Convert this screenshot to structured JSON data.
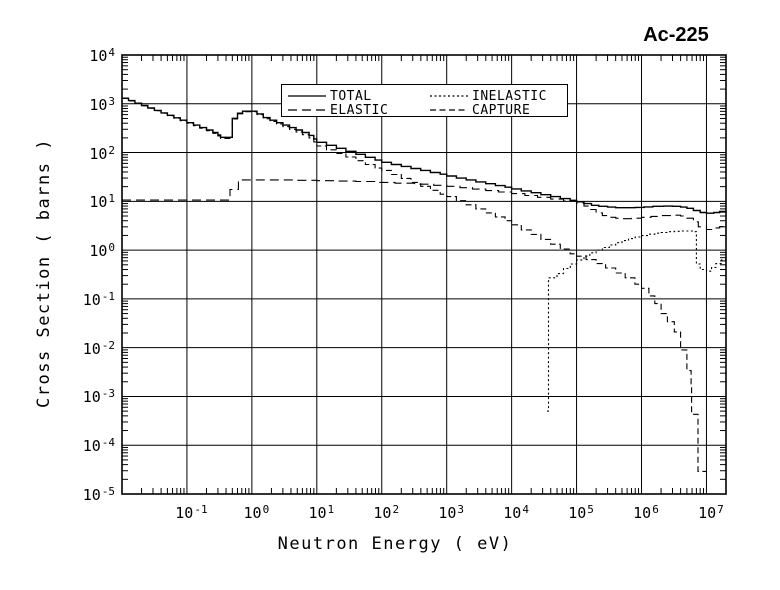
{
  "title": "Ac-225",
  "chart_data": {
    "type": "line",
    "title": "Ac-225",
    "xlabel": "Neutron Energy ( eV)",
    "ylabel": "Cross Section ( barns )",
    "x_scale": "log",
    "y_scale": "log",
    "xlim": [
      0.01,
      20000000
    ],
    "ylim": [
      1e-05,
      10000
    ],
    "x_tick_exponents": [
      -1,
      0,
      1,
      2,
      3,
      4,
      5,
      6,
      7
    ],
    "y_tick_exponents": [
      4,
      3,
      2,
      1,
      0,
      -1,
      -2,
      -3,
      -4,
      -5
    ],
    "grid": true,
    "line_color": "#000000",
    "legend": {
      "position": "top-center",
      "entries": [
        {
          "label": "TOTAL",
          "dash": ""
        },
        {
          "label": "ELASTIC",
          "dash": "9,5"
        },
        {
          "label": "INELASTIC",
          "dash": "2,2.5"
        },
        {
          "label": "CAPTURE",
          "dash": "6,3.5"
        }
      ]
    },
    "series": [
      {
        "name": "ELASTIC",
        "dash": "9,5",
        "width": 1.1,
        "color": "#000000",
        "step": true,
        "end": 20000000,
        "points": [
          [
            0.01,
            10.6
          ],
          [
            0.46,
            17.5
          ],
          [
            0.62,
            27.5
          ],
          [
            2,
            27.5
          ],
          [
            5,
            27
          ],
          [
            10,
            26.5
          ],
          [
            20,
            26
          ],
          [
            40,
            25.5
          ],
          [
            80,
            24.5
          ],
          [
            160,
            23.5
          ],
          [
            320,
            22.5
          ],
          [
            630,
            21.3
          ],
          [
            1000,
            20.3
          ],
          [
            1600,
            19
          ],
          [
            2500,
            17.8
          ],
          [
            4000,
            16.6
          ],
          [
            6300,
            15.5
          ],
          [
            10000,
            14.4
          ],
          [
            16000,
            13.2
          ],
          [
            25000,
            12.1
          ],
          [
            40000,
            11.1
          ],
          [
            63000,
            10.1
          ],
          [
            100000,
            9.2
          ],
          [
            130000,
            8.0
          ],
          [
            160000,
            6.8
          ],
          [
            200000,
            5.8
          ],
          [
            250000,
            5.1
          ],
          [
            320000,
            4.7
          ],
          [
            400000,
            4.5
          ],
          [
            500000,
            4.4
          ],
          [
            700000,
            4.5
          ],
          [
            1000000,
            4.7
          ],
          [
            1400000,
            4.9
          ],
          [
            2000000,
            5.1
          ],
          [
            3000000,
            5.2
          ],
          [
            4000000,
            5.0
          ],
          [
            5000000,
            4.5
          ],
          [
            6300000,
            3.8
          ],
          [
            7500000,
            3.0
          ],
          [
            10000000,
            2.65
          ],
          [
            13000000,
            2.85
          ],
          [
            16000000,
            3.05
          ],
          [
            20000000,
            3.25
          ]
        ]
      },
      {
        "name": "CAPTURE",
        "dash": "6,3.5",
        "width": 1.1,
        "color": "#000000",
        "step": true,
        "end": 10000000,
        "points": [
          [
            0.01,
            1290
          ],
          [
            0.0126,
            1150
          ],
          [
            0.0158,
            1020
          ],
          [
            0.02,
            910
          ],
          [
            0.025,
            810
          ],
          [
            0.0316,
            720
          ],
          [
            0.04,
            640
          ],
          [
            0.05,
            570
          ],
          [
            0.063,
            507
          ],
          [
            0.079,
            450
          ],
          [
            0.1,
            400
          ],
          [
            0.126,
            355
          ],
          [
            0.158,
            315
          ],
          [
            0.2,
            280
          ],
          [
            0.251,
            248
          ],
          [
            0.3,
            220
          ],
          [
            0.33,
            194
          ],
          [
            0.5,
            488
          ],
          [
            0.6,
            622
          ],
          [
            0.72,
            688
          ],
          [
            1.2,
            600
          ],
          [
            1.5,
            495
          ],
          [
            1.9,
            435
          ],
          [
            2.4,
            385
          ],
          [
            3,
            340
          ],
          [
            3.8,
            300
          ],
          [
            4.8,
            265
          ],
          [
            6,
            232
          ],
          [
            7.6,
            200
          ],
          [
            9,
            165
          ],
          [
            10,
            136
          ],
          [
            14.1,
            114
          ],
          [
            20,
            96
          ],
          [
            28,
            81
          ],
          [
            40,
            68
          ],
          [
            56,
            57
          ],
          [
            79,
            48
          ],
          [
            100,
            43
          ],
          [
            141,
            35.5
          ],
          [
            200,
            29.5
          ],
          [
            282,
            24.5
          ],
          [
            398,
            20.3
          ],
          [
            562,
            16.8
          ],
          [
            794,
            14
          ],
          [
            1000,
            12.5
          ],
          [
            1410,
            10.3
          ],
          [
            2000,
            8.5
          ],
          [
            2820,
            7.0
          ],
          [
            3980,
            5.8
          ],
          [
            5620,
            4.8
          ],
          [
            7940,
            4.0
          ],
          [
            10000,
            3.3
          ],
          [
            14100,
            2.6
          ],
          [
            20000,
            2.1
          ],
          [
            28200,
            1.66
          ],
          [
            39800,
            1.32
          ],
          [
            56200,
            1.05
          ],
          [
            79400,
            0.84
          ],
          [
            100000,
            0.75
          ],
          [
            140000,
            0.64
          ],
          [
            200000,
            0.53
          ],
          [
            280000,
            0.43
          ],
          [
            400000,
            0.34
          ],
          [
            560000,
            0.27
          ],
          [
            790000,
            0.2
          ],
          [
            1000000,
            0.165
          ],
          [
            1300000,
            0.115
          ],
          [
            1600000,
            0.08
          ],
          [
            2000000,
            0.05
          ],
          [
            2500000,
            0.034
          ],
          [
            3200000,
            0.021
          ],
          [
            4000000,
            0.009
          ],
          [
            5000000,
            0.0034
          ],
          [
            5800000,
            0.0018
          ],
          [
            5900000,
            0.00043
          ],
          [
            7400000,
            2.9e-05
          ],
          [
            10000000,
            2.9e-05
          ]
        ]
      },
      {
        "name": "INELASTIC",
        "dash": "2,2.5",
        "width": 1.1,
        "color": "#000000",
        "step": true,
        "end": 20000000,
        "points": [
          [
            35000,
            0.0005
          ],
          [
            37000,
            0.27
          ],
          [
            50000,
            0.33
          ],
          [
            63000,
            0.42
          ],
          [
            80000,
            0.52
          ],
          [
            100000,
            0.63
          ],
          [
            130000,
            0.76
          ],
          [
            160000,
            0.88
          ],
          [
            200000,
            1.0
          ],
          [
            250000,
            1.13
          ],
          [
            320000,
            1.27
          ],
          [
            400000,
            1.42
          ],
          [
            500000,
            1.57
          ],
          [
            630000,
            1.72
          ],
          [
            800000,
            1.86
          ],
          [
            1000000,
            1.98
          ],
          [
            1300000,
            2.12
          ],
          [
            1600000,
            2.22
          ],
          [
            2000000,
            2.3
          ],
          [
            2500000,
            2.38
          ],
          [
            3200000,
            2.43
          ],
          [
            4000000,
            2.46
          ],
          [
            5000000,
            2.46
          ],
          [
            6300000,
            2.38
          ],
          [
            7000000,
            0.52
          ],
          [
            8000000,
            0.4
          ],
          [
            10000000,
            0.37
          ],
          [
            12000000,
            0.44
          ],
          [
            14000000,
            0.53
          ],
          [
            17000000,
            0.63
          ],
          [
            20000000,
            0.72
          ]
        ]
      },
      {
        "name": "TOTAL",
        "dash": "",
        "width": 1.4,
        "color": "#000000",
        "step": true,
        "end": 20000000,
        "points": [
          [
            0.01,
            1300
          ],
          [
            0.0126,
            1160
          ],
          [
            0.0158,
            1030
          ],
          [
            0.02,
            920
          ],
          [
            0.025,
            820
          ],
          [
            0.0316,
            730
          ],
          [
            0.04,
            650
          ],
          [
            0.05,
            580
          ],
          [
            0.063,
            517
          ],
          [
            0.079,
            460
          ],
          [
            0.1,
            410
          ],
          [
            0.126,
            365
          ],
          [
            0.158,
            325
          ],
          [
            0.2,
            290
          ],
          [
            0.251,
            258
          ],
          [
            0.3,
            230
          ],
          [
            0.33,
            205
          ],
          [
            0.5,
            505
          ],
          [
            0.6,
            640
          ],
          [
            0.72,
            705
          ],
          [
            1.2,
            620
          ],
          [
            1.5,
            520
          ],
          [
            1.9,
            460
          ],
          [
            2.4,
            410
          ],
          [
            3,
            365
          ],
          [
            3.8,
            325
          ],
          [
            4.8,
            290
          ],
          [
            6,
            258
          ],
          [
            7.6,
            225
          ],
          [
            9,
            190
          ],
          [
            10,
            162
          ],
          [
            14.1,
            141
          ],
          [
            20,
            122
          ],
          [
            28,
            106
          ],
          [
            40,
            92
          ],
          [
            56,
            80
          ],
          [
            79,
            70
          ],
          [
            100,
            63
          ],
          [
            141,
            57
          ],
          [
            200,
            52
          ],
          [
            282,
            47
          ],
          [
            398,
            43
          ],
          [
            562,
            39
          ],
          [
            794,
            36
          ],
          [
            1000,
            33
          ],
          [
            1410,
            30
          ],
          [
            2000,
            27.5
          ],
          [
            2820,
            25
          ],
          [
            3980,
            23
          ],
          [
            5620,
            21
          ],
          [
            7940,
            19.5
          ],
          [
            10000,
            18
          ],
          [
            14100,
            16.4
          ],
          [
            20000,
            15
          ],
          [
            28200,
            13.7
          ],
          [
            40000,
            12.5
          ],
          [
            56200,
            11.4
          ],
          [
            79400,
            10.5
          ],
          [
            100000,
            9.8
          ],
          [
            130000,
            9.0
          ],
          [
            170000,
            8.3
          ],
          [
            220000,
            7.9
          ],
          [
            300000,
            7.6
          ],
          [
            400000,
            7.4
          ],
          [
            600000,
            7.4
          ],
          [
            800000,
            7.5
          ],
          [
            1100000,
            7.7
          ],
          [
            1500000,
            7.9
          ],
          [
            2200000,
            8.0
          ],
          [
            3000000,
            7.9
          ],
          [
            4000000,
            7.6
          ],
          [
            5000000,
            7.2
          ],
          [
            6300000,
            6.5
          ],
          [
            8000000,
            5.9
          ],
          [
            10000000,
            5.7
          ],
          [
            13000000,
            5.9
          ],
          [
            16000000,
            6.2
          ],
          [
            20000000,
            6.3
          ]
        ]
      }
    ]
  }
}
